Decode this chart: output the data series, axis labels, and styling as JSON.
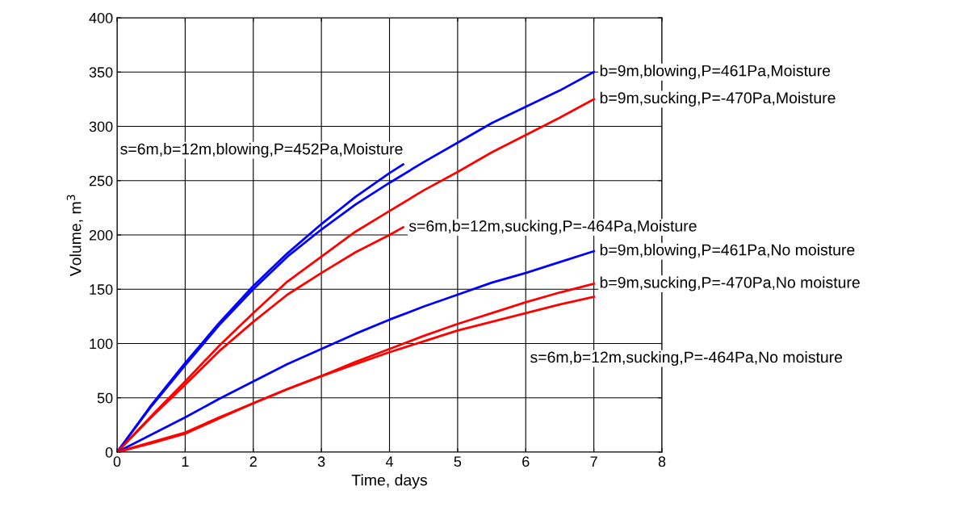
{
  "chart_data": {
    "type": "line",
    "xlabel": "Time, days",
    "ylabel": "Volume, m$^{3}$",
    "xlim": [
      0,
      8
    ],
    "ylim": [
      0,
      400
    ],
    "xticks": [
      0,
      1,
      2,
      3,
      4,
      5,
      6,
      7,
      8
    ],
    "yticks": [
      0,
      50,
      100,
      150,
      200,
      250,
      300,
      350,
      400
    ],
    "grid": true,
    "legend": false,
    "marker": "none",
    "line_style": "solid",
    "series": [
      {
        "name": "b=9m,blowing,P=461Pa,Moisture",
        "color": "#0000ff",
        "x": [
          0,
          0.5,
          1,
          1.5,
          2,
          2.5,
          3,
          3.5,
          4,
          4.5,
          5,
          5.5,
          6,
          6.5,
          7
        ],
        "values": [
          0,
          42,
          80,
          117,
          150,
          180,
          205,
          228,
          248,
          267,
          285,
          303,
          318,
          333,
          350
        ]
      },
      {
        "name": "b=9m,sucking,P=-470Pa,Moisture",
        "color": "#ff0000",
        "x": [
          0,
          0.5,
          1,
          1.5,
          2,
          2.5,
          3,
          3.5,
          4,
          4.5,
          5,
          5.5,
          6,
          6.5,
          7
        ],
        "values": [
          0,
          33,
          65,
          98,
          128,
          157,
          180,
          203,
          222,
          241,
          258,
          276,
          292,
          308,
          325
        ]
      },
      {
        "name": "s=6m,b=12m,blowing,P=452Pa,Moisture",
        "color": "#0000ff",
        "x": [
          0,
          0.5,
          1,
          1.5,
          2,
          2.5,
          3,
          3.5,
          4,
          4.2
        ],
        "values": [
          0,
          43,
          82,
          119,
          153,
          183,
          210,
          235,
          257,
          265
        ]
      },
      {
        "name": "s=6m,b=12m,sucking,P=-464Pa,Moisture",
        "color": "#ff0000",
        "x": [
          0,
          0.5,
          1,
          1.5,
          2,
          2.5,
          3,
          3.5,
          4,
          4.2
        ],
        "values": [
          0,
          32,
          62,
          93,
          120,
          145,
          165,
          184,
          200,
          207
        ]
      },
      {
        "name": "b=9m,blowing,P=461Pa,No moisture",
        "color": "#0000ff",
        "x": [
          0,
          0.5,
          1,
          1.5,
          2,
          2.5,
          3,
          3.5,
          4,
          4.5,
          5,
          5.5,
          6,
          6.5,
          7
        ],
        "values": [
          0,
          16,
          32,
          49,
          65,
          81,
          95,
          109,
          122,
          134,
          145,
          156,
          165,
          175,
          185
        ]
      },
      {
        "name": "b=9m,sucking,P=-470Pa,No moisture",
        "color": "#ff0000",
        "x": [
          0,
          0.5,
          1,
          1.5,
          2,
          2.5,
          3,
          3.5,
          4,
          4.5,
          5,
          5.5,
          6,
          6.5,
          7
        ],
        "values": [
          0,
          8,
          17,
          31,
          45,
          58,
          70,
          83,
          95,
          107,
          118,
          128,
          138,
          147,
          155
        ]
      },
      {
        "name": "s=6m,b=12m,sucking,P=-464Pa,No moisture",
        "color": "#ff0000",
        "x": [
          0,
          0.5,
          1,
          1.5,
          2,
          2.5,
          3,
          3.5,
          4,
          4.5,
          5,
          5.5,
          6,
          6.5,
          7
        ],
        "values": [
          0,
          9,
          18,
          32,
          45,
          58,
          70,
          81,
          92,
          102,
          112,
          120,
          128,
          136,
          143
        ]
      }
    ]
  }
}
